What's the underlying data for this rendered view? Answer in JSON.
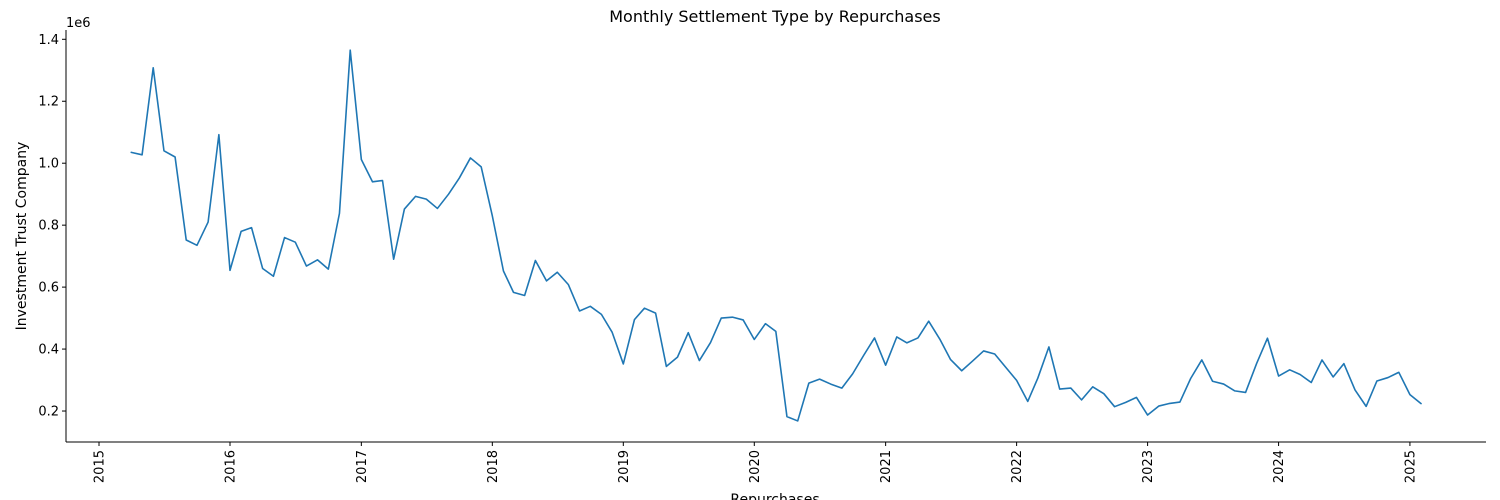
{
  "chart_data": {
    "type": "line",
    "title": "Monthly Settlement Type by Repurchases",
    "xlabel": "Repurchases",
    "ylabel": "Investment Trust Company",
    "y_offset_text": "1e6",
    "xlim": [
      "2014-10-01",
      "2025-08-01"
    ],
    "ylim": [
      100000,
      1430000
    ],
    "x_ticks": [
      "2015",
      "2016",
      "2017",
      "2018",
      "2019",
      "2020",
      "2021",
      "2022",
      "2023",
      "2024",
      "2025"
    ],
    "y_ticks": [
      {
        "value": 200000,
        "label": "0.2"
      },
      {
        "value": 400000,
        "label": "0.4"
      },
      {
        "value": 600000,
        "label": "0.6"
      },
      {
        "value": 800000,
        "label": "0.8"
      },
      {
        "value": 1000000,
        "label": "1.0"
      },
      {
        "value": 1200000,
        "label": "1.2"
      },
      {
        "value": 1400000,
        "label": "1.4"
      }
    ],
    "grid": false,
    "line_color": "#1f77b4",
    "series": [
      {
        "x": [
          "2015-04",
          "2015-05",
          "2015-06",
          "2015-07",
          "2015-08",
          "2015-09",
          "2015-10",
          "2015-11",
          "2015-12",
          "2016-01",
          "2016-02",
          "2016-03",
          "2016-04",
          "2016-05",
          "2016-06",
          "2016-07",
          "2016-08",
          "2016-09",
          "2016-10",
          "2016-11",
          "2016-12",
          "2017-01",
          "2017-02",
          "2017-03",
          "2017-04",
          "2017-05",
          "2017-06",
          "2017-07",
          "2017-08",
          "2017-09",
          "2017-10",
          "2017-11",
          "2017-12",
          "2018-01",
          "2018-02",
          "2018-03",
          "2018-04",
          "2018-05",
          "2018-06",
          "2018-07",
          "2018-08",
          "2018-09",
          "2018-10",
          "2018-11",
          "2018-12",
          "2019-01",
          "2019-02",
          "2019-03",
          "2019-04",
          "2019-05",
          "2019-06",
          "2019-07",
          "2019-08",
          "2019-09",
          "2019-10",
          "2019-11",
          "2019-12",
          "2020-01",
          "2020-02",
          "2020-03",
          "2020-04",
          "2020-05",
          "2020-06",
          "2020-07",
          "2020-08",
          "2020-09",
          "2020-10",
          "2020-11",
          "2020-12",
          "2021-01",
          "2021-02",
          "2021-03",
          "2021-04",
          "2021-05",
          "2021-06",
          "2021-07",
          "2021-08",
          "2021-09",
          "2021-10",
          "2021-11",
          "2021-12",
          "2022-01",
          "2022-02",
          "2022-03",
          "2022-04",
          "2022-05",
          "2022-06",
          "2022-07",
          "2022-08",
          "2022-09",
          "2022-10",
          "2022-11",
          "2022-12",
          "2023-01",
          "2023-02",
          "2023-03",
          "2023-04",
          "2023-05",
          "2023-06",
          "2023-07",
          "2023-08",
          "2023-09",
          "2023-10",
          "2023-11",
          "2023-12",
          "2024-01",
          "2024-02",
          "2024-03",
          "2024-04",
          "2024-05",
          "2024-06",
          "2024-07",
          "2024-08",
          "2024-09",
          "2024-10",
          "2024-11",
          "2024-12",
          "2025-01",
          "2025-02"
        ],
        "values": [
          1035000,
          1027000,
          1308000,
          1040000,
          1020000,
          752000,
          735000,
          810000,
          1092000,
          654000,
          780000,
          792000,
          660000,
          635000,
          760000,
          745000,
          668000,
          688000,
          658000,
          838000,
          1365000,
          1012000,
          940000,
          944000,
          690000,
          852000,
          893000,
          884000,
          854000,
          900000,
          952000,
          1017000,
          988000,
          830000,
          652000,
          583000,
          573000,
          686000,
          620000,
          648000,
          608000,
          523000,
          538000,
          512000,
          454000,
          352000,
          495000,
          532000,
          516000,
          344000,
          374000,
          453000,
          363000,
          421000,
          500000,
          503000,
          494000,
          431000,
          482000,
          457000,
          182000,
          168000,
          290000,
          303000,
          287000,
          274000,
          320000,
          380000,
          436000,
          348000,
          439000,
          420000,
          436000,
          490000,
          432000,
          366000,
          330000,
          362000,
          394000,
          384000,
          342000,
          299000,
          231000,
          306000,
          407000,
          271000,
          274000,
          236000,
          278000,
          256000,
          214000,
          228000,
          244000,
          187000,
          216000,
          224000,
          229000,
          305000,
          365000,
          296000,
          287000,
          265000,
          260000,
          354000,
          435000,
          313000,
          333000,
          318000,
          292000,
          365000,
          310000,
          353000,
          268000,
          215000,
          297000,
          308000,
          325000,
          253000,
          224000
        ]
      }
    ]
  }
}
